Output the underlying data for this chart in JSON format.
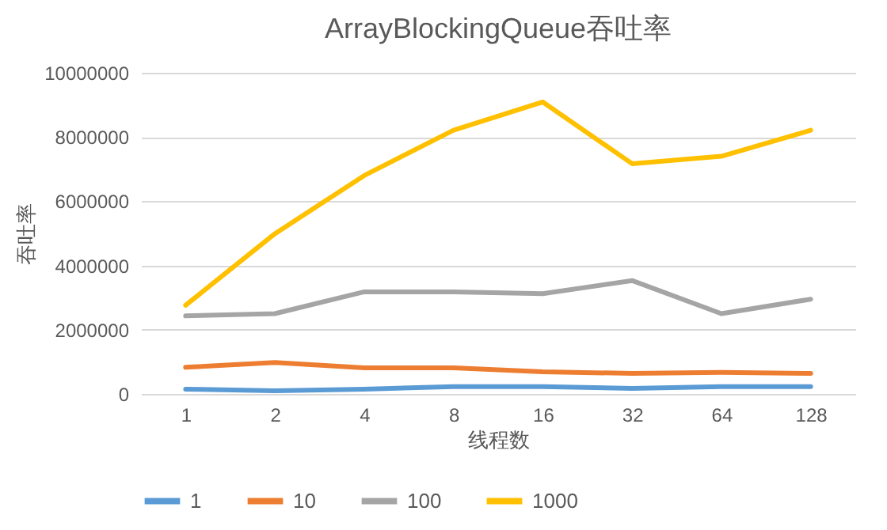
{
  "chart_data": {
    "type": "line",
    "title": "ArrayBlockingQueue吞吐率",
    "xlabel": "线程数",
    "ylabel": "吞吐率",
    "categories": [
      "1",
      "2",
      "4",
      "8",
      "16",
      "32",
      "64",
      "128"
    ],
    "series": [
      {
        "name": "1",
        "color": "#5b9bd5",
        "values": [
          150000,
          100000,
          150000,
          230000,
          230000,
          170000,
          230000,
          230000
        ]
      },
      {
        "name": "10",
        "color": "#ed7d31",
        "values": [
          830000,
          980000,
          810000,
          810000,
          690000,
          640000,
          670000,
          640000
        ]
      },
      {
        "name": "100",
        "color": "#a5a5a5",
        "values": [
          2430000,
          2500000,
          3180000,
          3180000,
          3120000,
          3530000,
          2500000,
          2950000
        ]
      },
      {
        "name": "1000",
        "color": "#ffc000",
        "values": [
          2760000,
          4990000,
          6800000,
          8210000,
          9090000,
          7170000,
          7400000,
          8210000
        ]
      }
    ],
    "ylim": [
      0,
      10000000
    ],
    "yticks": [
      0,
      2000000,
      4000000,
      6000000,
      8000000,
      10000000
    ],
    "grid": "y",
    "legend": "bottom",
    "marker": "none",
    "line_style": "solid"
  }
}
